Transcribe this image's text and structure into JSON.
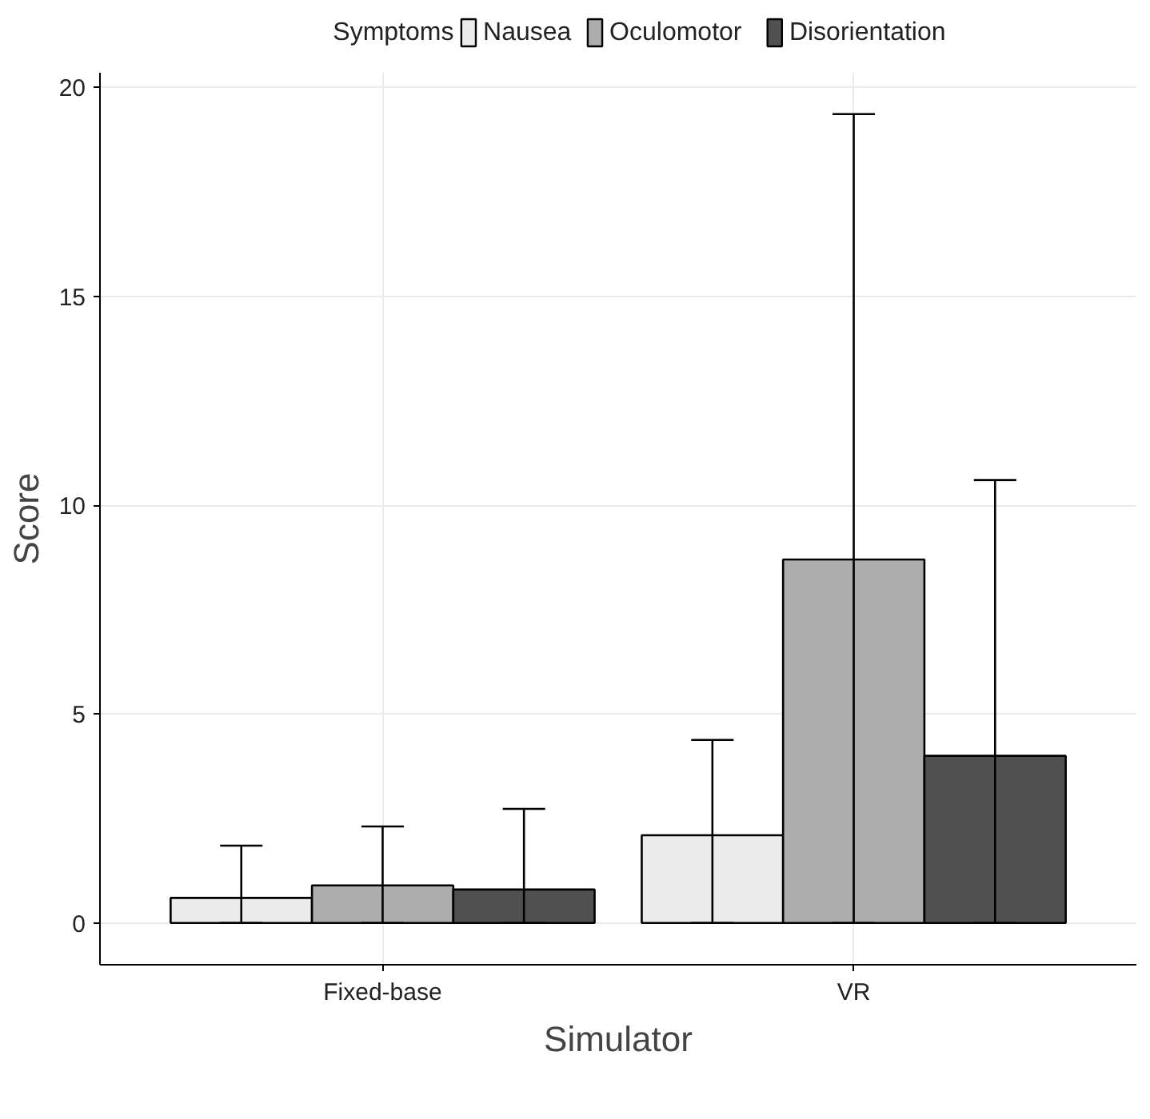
{
  "chart_data": {
    "type": "bar",
    "xlabel": "Simulator",
    "ylabel": "Score",
    "legend_title": "Symptoms",
    "categories": [
      "Fixed-base",
      "VR"
    ],
    "series": [
      {
        "name": "Nausea",
        "color": "#ebebeb",
        "values": [
          0.6,
          2.1
        ],
        "errors": [
          [
            0,
            1.85
          ],
          [
            0,
            4.38
          ]
        ]
      },
      {
        "name": "Oculomotor",
        "color": "#adadad",
        "values": [
          0.9,
          8.7
        ],
        "errors": [
          [
            0,
            2.31
          ],
          [
            0,
            19.36
          ]
        ]
      },
      {
        "name": "Disorientation",
        "color": "#505050",
        "values": [
          0.8,
          4.0
        ],
        "errors": [
          [
            0,
            2.73
          ],
          [
            0,
            10.6
          ]
        ]
      }
    ],
    "ylim": [
      -1.0,
      20.35
    ],
    "yticks": [
      0,
      5,
      10,
      15,
      20
    ],
    "grid": true,
    "legend": "top"
  }
}
